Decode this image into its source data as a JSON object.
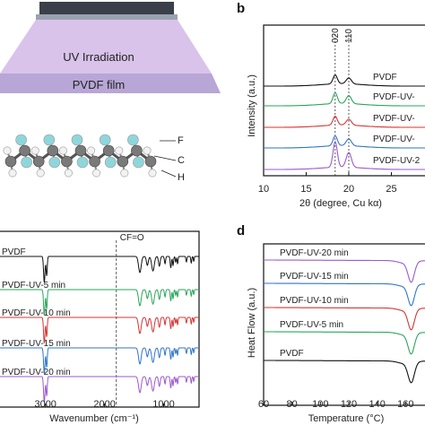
{
  "panels": {
    "a": {
      "uv_label": "UV Irradiation",
      "film_label": "PVDF film",
      "atom_labels": [
        "F",
        "C",
        "H"
      ],
      "colors": {
        "fluorine": "#8fd6dc",
        "carbon": "#7a7a7a",
        "hydrogen": "#f2f2f2"
      }
    },
    "b": {
      "letter": "b",
      "xlabel": "2θ (degree, Cu kα)",
      "ylabel": "Intensity (a.u.)",
      "peak_labels": [
        "020",
        "110"
      ],
      "series_labels": [
        "PVDF-UV-2",
        "PVDF-UV-",
        "PVDF-UV-",
        "PVDF-UV-",
        "PVDF"
      ]
    },
    "c": {
      "annotation": "CF=O",
      "xlabel": "Wavenumber (cm⁻¹)",
      "series_labels": [
        "PVDF-UV-20 min",
        "PVDF-UV-15 min",
        "PVDF-UV-10 min",
        "PVDF-UV-5 min",
        "PVDF"
      ]
    },
    "d": {
      "letter": "d",
      "xlabel": "Temperature (°C)",
      "ylabel": "Heat Flow (a.u.)",
      "series_labels": [
        "PVDF-UV-20 min",
        "PVDF-UV-15 min",
        "PVDF-UV-10 min",
        "PVDF-UV-5 min",
        "PVDF"
      ]
    }
  },
  "series_colors": [
    "#9b59d0",
    "#2f76c9",
    "#d63434",
    "#2aa65a",
    "#111111"
  ],
  "chart_data": [
    {
      "type": "line",
      "panel": "b",
      "xlabel": "2θ (degree, Cu kα)",
      "ylabel": "Intensity (a.u.)",
      "xlim": [
        10,
        30
      ],
      "ticks_x": [
        10,
        15,
        20,
        25
      ],
      "peaks": [
        18.4,
        20.0
      ],
      "series": [
        {
          "offset": 4,
          "peak_heights": [
            1.3,
            0.75
          ]
        },
        {
          "offset": 3,
          "peak_heights": [
            0.5,
            0.35
          ]
        },
        {
          "offset": 2,
          "peak_heights": [
            0.45,
            0.3
          ]
        },
        {
          "offset": 1,
          "peak_heights": [
            0.55,
            0.4
          ]
        },
        {
          "offset": 0,
          "peak_heights": [
            0.45,
            0.3
          ]
        }
      ]
    },
    {
      "type": "line",
      "panel": "c",
      "xlabel": "Wavenumber (cm⁻¹)",
      "xlim": [
        3800,
        400
      ],
      "ticks_x": [
        3000,
        2000,
        1000
      ],
      "marker_x": 1800,
      "series": [
        {
          "offset": 4
        },
        {
          "offset": 3
        },
        {
          "offset": 2
        },
        {
          "offset": 1
        },
        {
          "offset": 0
        }
      ]
    },
    {
      "type": "line",
      "panel": "d",
      "xlabel": "Temperature (°C)",
      "ylabel": "Heat Flow (a.u.)",
      "xlim": [
        60,
        180
      ],
      "ticks_x": [
        60,
        80,
        100,
        120,
        140,
        160
      ],
      "dip_x": 164,
      "series": [
        {
          "offset": 4
        },
        {
          "offset": 3
        },
        {
          "offset": 2
        },
        {
          "offset": 1
        },
        {
          "offset": 0
        }
      ]
    }
  ]
}
